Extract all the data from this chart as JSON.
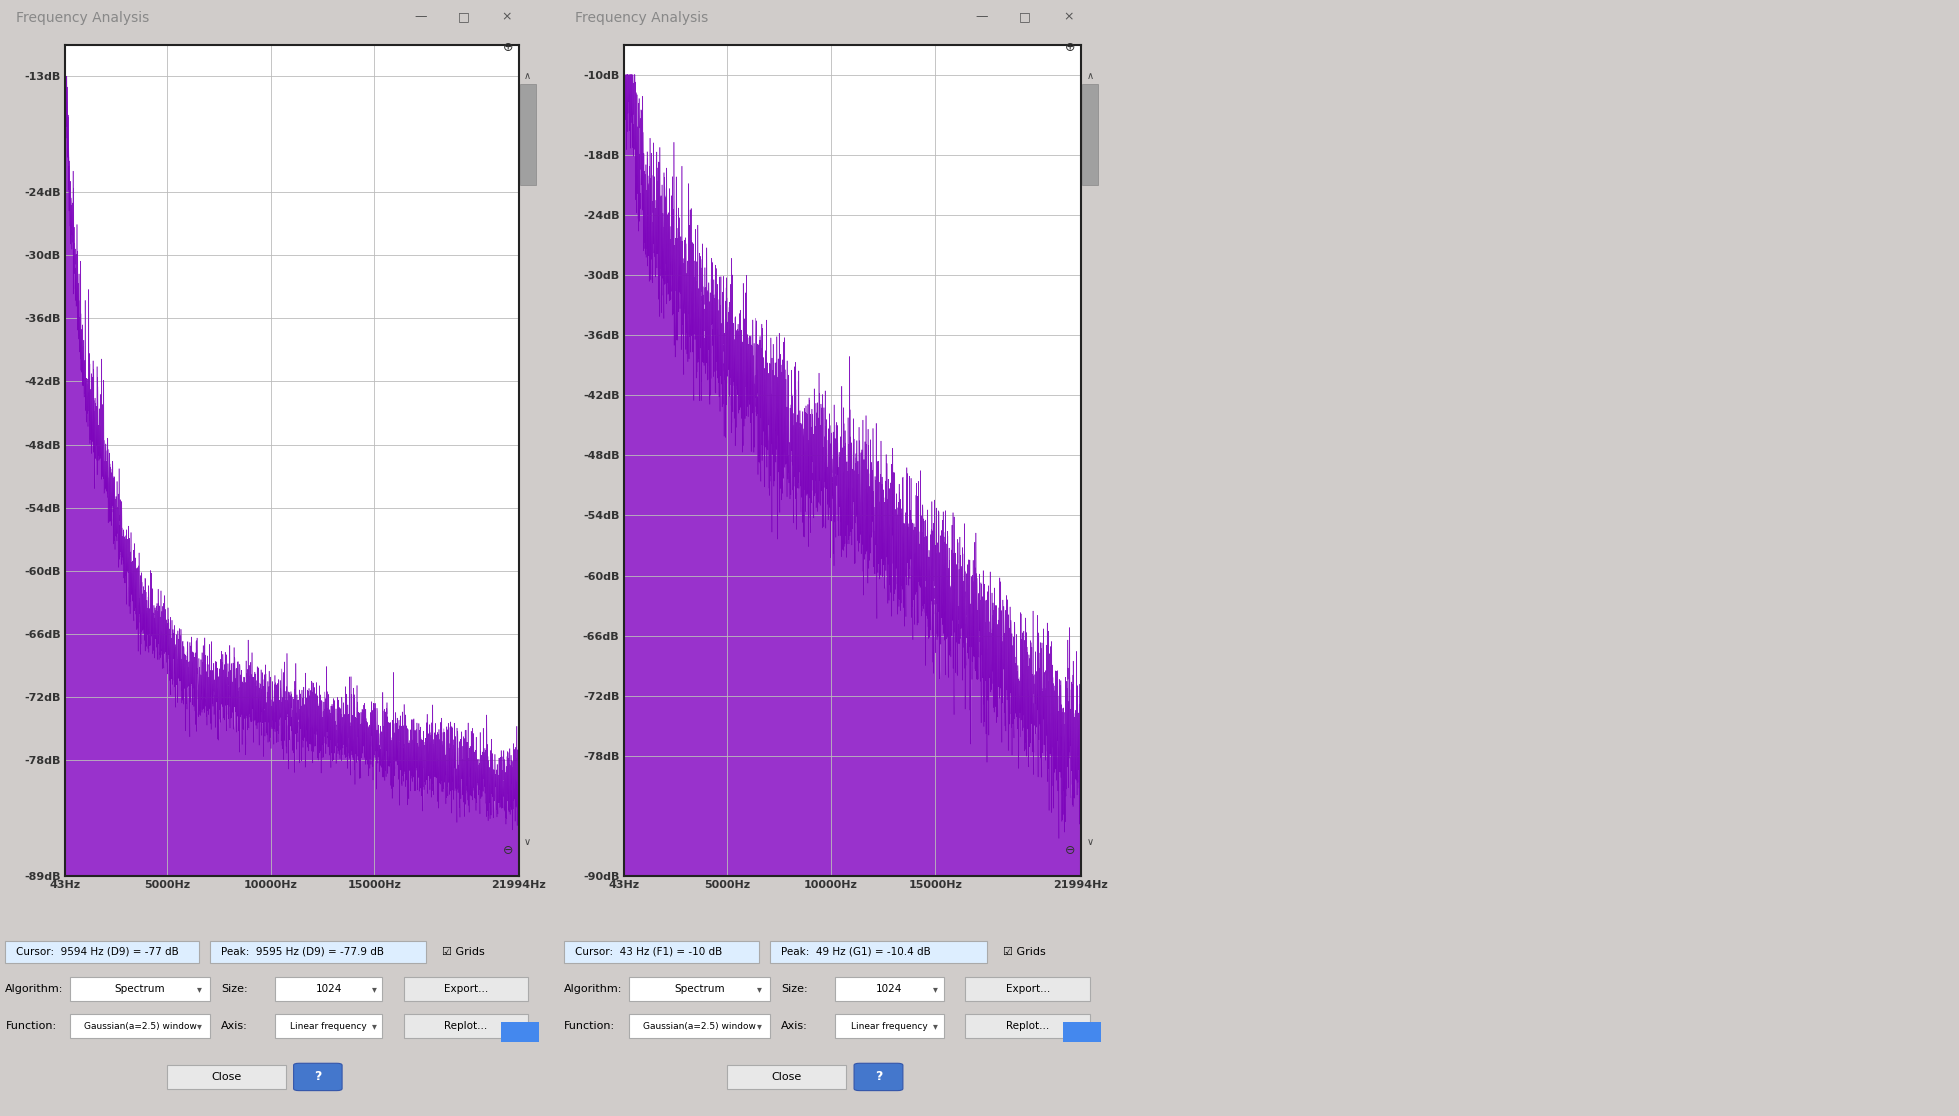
{
  "left_chart": {
    "title": "Frequency Analysis",
    "yticks": [
      -13,
      -24,
      -30,
      -36,
      -42,
      -48,
      -54,
      -60,
      -66,
      -72,
      -78,
      -89
    ],
    "ylim": [
      -89,
      -10
    ],
    "xticks": [
      43,
      5000,
      10000,
      15000,
      21994
    ],
    "xlim": [
      43,
      21994
    ],
    "xlabel_labels": [
      "43Hz",
      "5000Hz",
      "10000Hz",
      "15000Hz",
      "21994Hz"
    ],
    "cursor_text": "Cursor:  9594 Hz (D9) = -77 dB",
    "peak_text": "Peak:  9595 Hz (D9) = -77.9 dB",
    "grids_text": "☑ Grids",
    "algo": "Spectrum",
    "size": "1024",
    "func": "Gaussian(a=2.5) window",
    "axis_label": "Linear frequency",
    "fill_color": "#9932CC",
    "edge_color": "#7B00BB",
    "bg_color": "#FFFFFF",
    "panel_bg": "#F0F0F0",
    "window_bg": "#E8E8E8"
  },
  "right_chart": {
    "title": "Frequency Analysis",
    "yticks": [
      -10,
      -18,
      -24,
      -30,
      -36,
      -42,
      -48,
      -54,
      -60,
      -66,
      -72,
      -78,
      -90
    ],
    "ylim": [
      -90,
      -7
    ],
    "xticks": [
      43,
      5000,
      10000,
      15000,
      21994
    ],
    "xlim": [
      43,
      21994
    ],
    "xlabel_labels": [
      "43Hz",
      "5000Hz",
      "10000Hz",
      "15000Hz",
      "21994Hz"
    ],
    "cursor_text": "Cursor:  43 Hz (F1) = -10 dB",
    "peak_text": "Peak:  49 Hz (G1) = -10.4 dB",
    "grids_text": "☑ Grids",
    "algo": "Spectrum",
    "size": "1024",
    "func": "Gaussian(a=2.5) window",
    "axis_label": "Linear frequency",
    "fill_color": "#9932CC",
    "edge_color": "#7B00BB",
    "bg_color": "#FFFFFF",
    "panel_bg": "#F0F0F0",
    "window_bg": "#E8E8E8"
  },
  "app_bg": "#D0CCCA"
}
